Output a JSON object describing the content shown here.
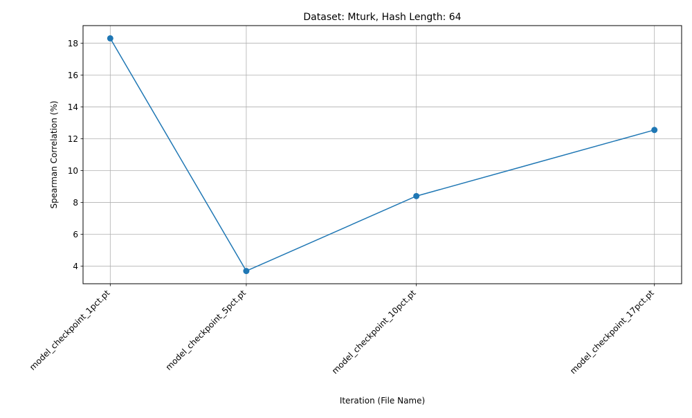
{
  "chart_data": {
    "type": "line",
    "title": "Dataset: Mturk, Hash Length: 64",
    "xlabel": "Iteration (File Name)",
    "ylabel": "Spearman Correlation (%)",
    "x": [
      1,
      5,
      10,
      17
    ],
    "x_tick_labels": [
      "model_checkpoint_1pct.pt",
      "model_checkpoint_5pct.pt",
      "model_checkpoint_10pct.pt",
      "model_checkpoint_17pct.pt"
    ],
    "series": [
      {
        "values": [
          18.3,
          3.7,
          8.4,
          12.55
        ],
        "color": "#1f77b4",
        "marker": "circle"
      }
    ],
    "xlim": [
      0.2,
      17.8
    ],
    "ylim": [
      2.9,
      19.1
    ],
    "y_ticks": [
      4,
      6,
      8,
      10,
      12,
      14,
      16,
      18
    ],
    "grid": true,
    "legend": "none"
  }
}
